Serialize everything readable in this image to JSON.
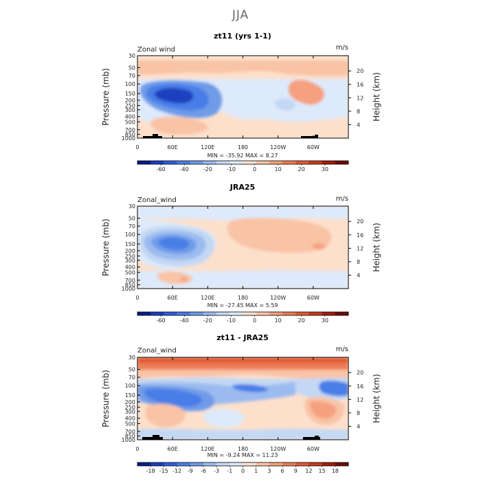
{
  "figure": {
    "season_title": "JJA",
    "panels": [
      {
        "id": "model",
        "title": "zt11 (yrs 1-1)",
        "variable_label": "Zonal wind",
        "units_label": "m/s",
        "ylabel_left": "Pressure (mb)",
        "ylabel_right": "Height (km)",
        "stats_text": "MIN = -35.92   MAX =   8.27",
        "colorbar_labels": [
          "-60",
          "-40",
          "-20",
          "-10",
          "0",
          "10",
          "20",
          "30"
        ]
      },
      {
        "id": "obs",
        "title": "JRA25",
        "variable_label": "Zonal_wind",
        "units_label": "m/s",
        "ylabel_left": "Pressure (mb)",
        "ylabel_right": "Height (km)",
        "stats_text": "MIN = -27.45   MAX =   5.59",
        "colorbar_labels": [
          "-60",
          "-40",
          "-20",
          "-10",
          "0",
          "10",
          "20",
          "30"
        ]
      },
      {
        "id": "diff",
        "title": "zt11 - JRA25",
        "variable_label": "Zonal_wind",
        "units_label": "m/s",
        "ylabel_left": "Pressure (mb)",
        "ylabel_right": "Height (km)",
        "stats_text": "MIN =  -9.24   MAX =  11.23",
        "colorbar_labels": [
          "-18",
          "-15",
          "-12",
          "-9",
          "-6",
          "-3",
          "-1",
          "0",
          "1",
          "3",
          "6",
          "9",
          "12",
          "15",
          "18"
        ]
      }
    ]
  },
  "chart_data": [
    {
      "type": "heatmap",
      "title": "zt11 (yrs 1-1)",
      "xlabel": "",
      "ylabel": "Pressure (mb)",
      "ylabel_right": "Height (km)",
      "x_ticks": [
        "0",
        "60E",
        "120E",
        "180",
        "120W",
        "60W"
      ],
      "x_tick_values": [
        0,
        60,
        120,
        180,
        240,
        300
      ],
      "xlim": [
        0,
        360
      ],
      "y_ticks": [
        "30",
        "50",
        "70",
        "100",
        "150",
        "200",
        "250",
        "300",
        "400",
        "500",
        "700",
        "850",
        "1000"
      ],
      "ylim": [
        1000,
        30
      ],
      "y_scale": "log",
      "right_ticks": [
        "4",
        "8",
        "12",
        "16",
        "20"
      ],
      "min": -35.92,
      "max": 8.27,
      "features": [
        {
          "kind": "min",
          "lon": 50,
          "p": 160,
          "value": -35.92
        },
        {
          "kind": "negative",
          "lon": 70,
          "p": 180,
          "value": -20
        },
        {
          "kind": "positive",
          "lon": 275,
          "p": 130,
          "value": 8.27
        },
        {
          "kind": "positive",
          "lon": 60,
          "p": 600,
          "value": 5
        },
        {
          "kind": "positive",
          "lon": 180,
          "p": 45,
          "value": 5
        }
      ]
    },
    {
      "type": "heatmap",
      "title": "JRA25",
      "xlabel": "",
      "ylabel": "Pressure (mb)",
      "ylabel_right": "Height (km)",
      "x_ticks": [
        "0",
        "60E",
        "120E",
        "180",
        "120W",
        "60W"
      ],
      "x_tick_values": [
        0,
        60,
        120,
        180,
        240,
        300
      ],
      "xlim": [
        0,
        360
      ],
      "y_ticks": [
        "30",
        "50",
        "70",
        "100",
        "150",
        "200",
        "250",
        "300",
        "400",
        "500",
        "700",
        "850",
        "1000"
      ],
      "ylim": [
        1000,
        30
      ],
      "y_scale": "log",
      "right_ticks": [
        "4",
        "8",
        "12",
        "16",
        "20"
      ],
      "min": -27.45,
      "max": 5.59,
      "features": [
        {
          "kind": "min",
          "lon": 55,
          "p": 155,
          "value": -27.45
        },
        {
          "kind": "positive",
          "lon": 270,
          "p": 140,
          "value": 5.59
        },
        {
          "kind": "positive",
          "lon": 70,
          "p": 700,
          "value": 3
        }
      ]
    },
    {
      "type": "heatmap",
      "title": "zt11 - JRA25",
      "xlabel": "",
      "ylabel": "Pressure (mb)",
      "ylabel_right": "Height (km)",
      "x_ticks": [
        "0",
        "60E",
        "120E",
        "180",
        "120W",
        "60W"
      ],
      "x_tick_values": [
        0,
        60,
        120,
        180,
        240,
        300
      ],
      "xlim": [
        0,
        360
      ],
      "y_ticks": [
        "30",
        "50",
        "70",
        "100",
        "150",
        "200",
        "250",
        "300",
        "400",
        "500",
        "700",
        "850",
        "1000"
      ],
      "ylim": [
        1000,
        30
      ],
      "y_scale": "log",
      "right_ticks": [
        "4",
        "8",
        "12",
        "16",
        "20"
      ],
      "min": -9.24,
      "max": 11.23,
      "features": [
        {
          "kind": "positive",
          "lon": 180,
          "p": 32,
          "value": 11.23
        },
        {
          "kind": "negative",
          "lon": 60,
          "p": 130,
          "value": -9.24
        },
        {
          "kind": "negative",
          "lon": 330,
          "p": 100,
          "value": -6
        },
        {
          "kind": "positive",
          "lon": 300,
          "p": 280,
          "value": 6
        },
        {
          "kind": "positive",
          "lon": 45,
          "p": 330,
          "value": 3
        }
      ]
    }
  ],
  "colormaps": {
    "full": [
      "#081d8a",
      "#1a3fc0",
      "#2f5fe0",
      "#4a7ee8",
      "#6f9be8",
      "#9bbbf0",
      "#c4d8f4",
      "#ddeafb",
      "#fde0cc",
      "#f9c3a5",
      "#f5a07e",
      "#ee7b55",
      "#e05a35",
      "#c73a1f",
      "#a31c0e",
      "#6e0c08"
    ],
    "diff": [
      "#081d8a",
      "#1a3fc0",
      "#2f5fe0",
      "#4a7ee8",
      "#6f9be8",
      "#9bbbf0",
      "#c4d8f4",
      "#ddeafb",
      "#fde0cc",
      "#f9c3a5",
      "#f5a07e",
      "#ee7b55",
      "#e05a35",
      "#c73a1f",
      "#a31c0e",
      "#6e0c08"
    ]
  }
}
